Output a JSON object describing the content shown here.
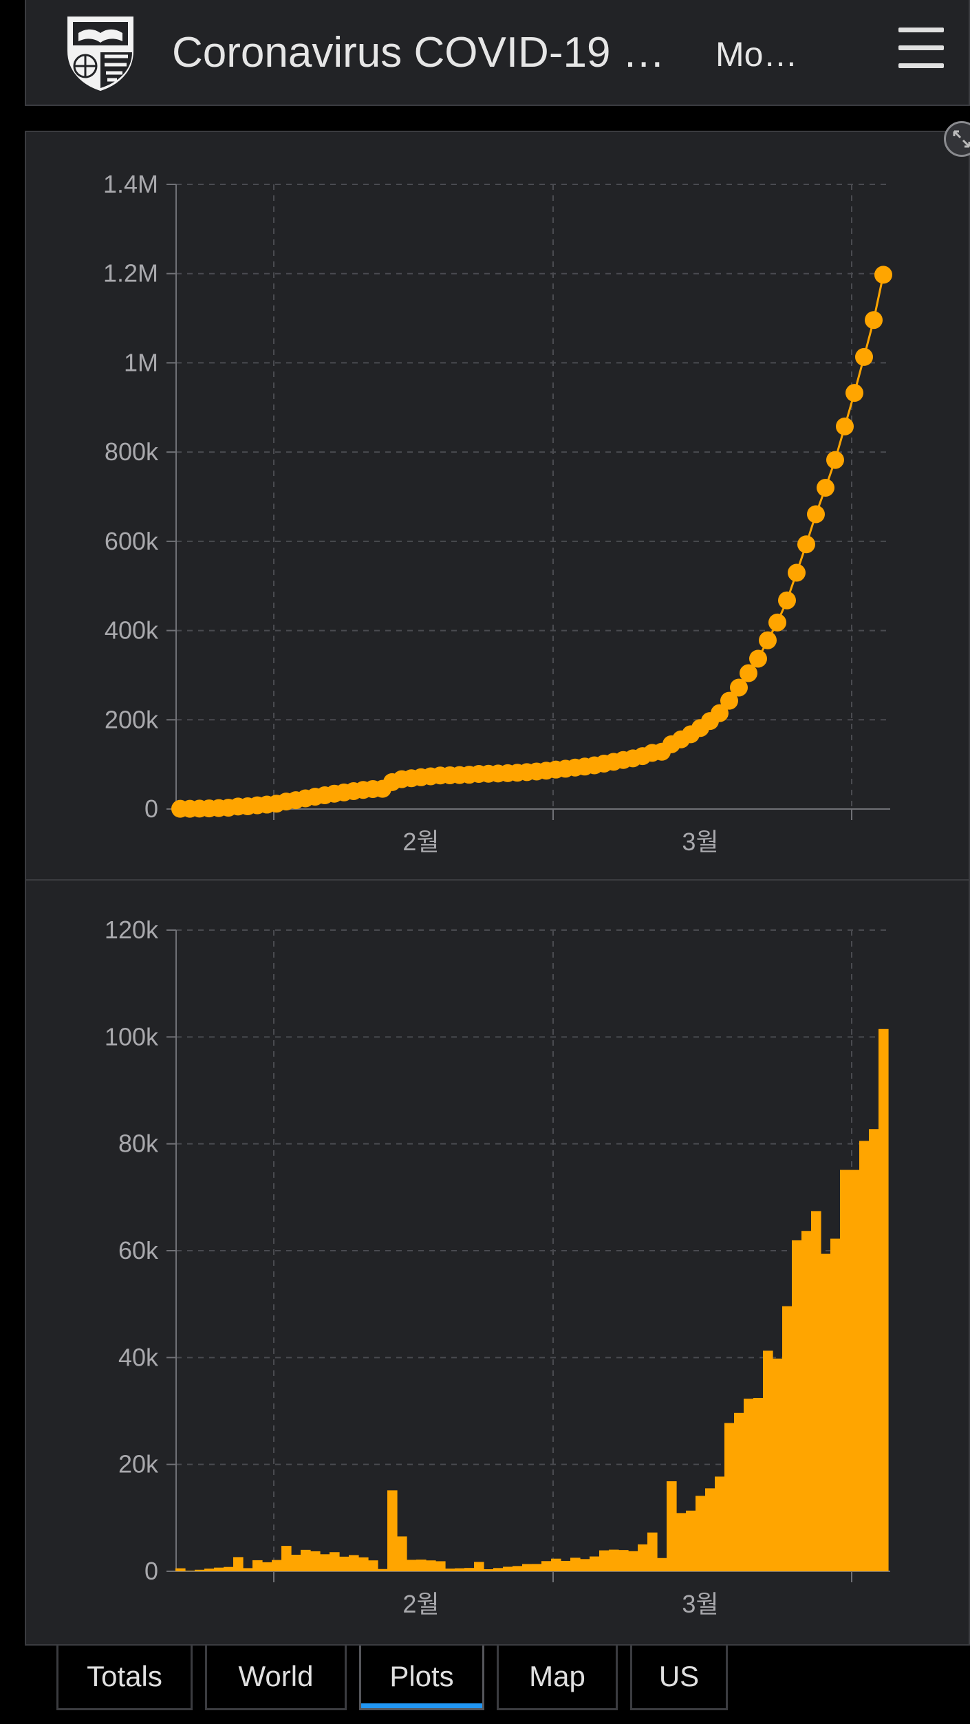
{
  "header": {
    "title": "Coronavirus COVID-19 …",
    "subtitle": "Mo…",
    "logo_icon": "jhu-shield-icon",
    "menu_icon": "hamburger-menu-icon"
  },
  "colors": {
    "accent": "#FFA500",
    "background": "#222326",
    "tab_active_underline": "#2196F3"
  },
  "tabs": [
    {
      "label": "Totals"
    },
    {
      "label": "World"
    },
    {
      "label": "Plots",
      "active": true
    },
    {
      "label": "Map"
    },
    {
      "label": "US"
    }
  ],
  "chart_data": [
    {
      "type": "line",
      "title": "",
      "xlabel": "",
      "ylabel": "",
      "x_tick_labels": [
        "2월",
        "3월"
      ],
      "y_tick_labels": [
        "0",
        "200k",
        "400k",
        "600k",
        "800k",
        "1M",
        "1.2M",
        "1.4M"
      ],
      "ylim": [
        0,
        1400000
      ],
      "grid": true,
      "series": [
        {
          "color": "#FFA500",
          "values": [
            555,
            654,
            941,
            1434,
            2118,
            2927,
            5578,
            6166,
            8234,
            9927,
            12038,
            16787,
            19881,
            23892,
            27635,
            30817,
            34391,
            37120,
            40150,
            42762,
            44802,
            45221,
            60368,
            66885,
            69030,
            71224,
            73258,
            75136,
            75639,
            76197,
            76819,
            78572,
            78958,
            79561,
            80406,
            81388,
            82746,
            84112,
            86011,
            88369,
            90306,
            92840,
            95120,
            97886,
            101801,
            105847,
            109821,
            113590,
            118620,
            125875,
            128352,
            145205,
            156101,
            167454,
            181574,
            197102,
            214821,
            242570,
            272208,
            304507,
            336953,
            378235,
            418045,
            467653,
            529591,
            593291,
            660706,
            720117,
            782365,
            857487,
            932605,
            1013157,
            1095917,
            1197405
          ]
        }
      ]
    },
    {
      "type": "bar",
      "title": "",
      "xlabel": "",
      "ylabel": "",
      "x_tick_labels": [
        "2월",
        "3월"
      ],
      "y_tick_labels": [
        "0",
        "20k",
        "40k",
        "60k",
        "80k",
        "100k",
        "120k"
      ],
      "ylim": [
        0,
        120000
      ],
      "grid": true,
      "series": [
        {
          "color": "#FFA500",
          "values": [
            555,
            99,
            287,
            493,
            684,
            809,
            2651,
            588,
            2068,
            1693,
            2111,
            4749,
            3094,
            4011,
            3743,
            3182,
            3574,
            2729,
            3030,
            2612,
            2040,
            419,
            15147,
            6517,
            2145,
            2194,
            2034,
            1878,
            503,
            558,
            622,
            1753,
            386,
            603,
            845,
            982,
            1358,
            1366,
            1899,
            2358,
            1937,
            2534,
            2280,
            2766,
            3915,
            4046,
            3974,
            3769,
            5030,
            7255,
            2477,
            16853,
            10896,
            11353,
            14120,
            15528,
            17719,
            27749,
            29638,
            32299,
            32446,
            41282,
            39810,
            49608,
            61938,
            63700,
            67415,
            59411,
            62248,
            75122,
            75118,
            80552,
            82760,
            101488
          ]
        }
      ]
    }
  ]
}
